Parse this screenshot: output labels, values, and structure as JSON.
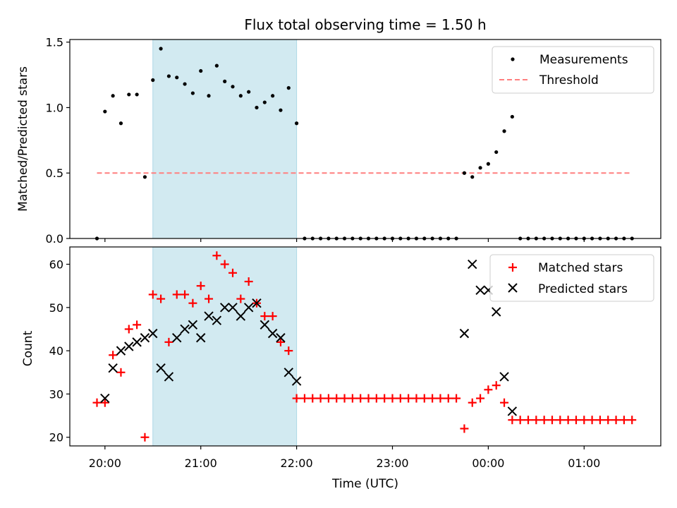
{
  "colors": {
    "shade": "#add8e6",
    "threshold": "#ff7f7f",
    "matched": "#ff0000",
    "predicted": "#000000",
    "measurement": "#000000"
  },
  "chart_data": [
    {
      "type": "scatter",
      "title": "Flux total observing time = 1.50 h",
      "ylabel": "Matched/Predicted stars",
      "xlim": [
        "19:38",
        "01:48"
      ],
      "ylim": [
        0,
        1.52
      ],
      "yticks": [
        0.0,
        0.5,
        1.0,
        1.5
      ],
      "ytick_labels": [
        "0.0",
        "0.5",
        "1.0",
        "1.5"
      ],
      "shaded_span": [
        "20:30",
        "22:00"
      ],
      "legend": {
        "position": "top-right",
        "entries": [
          "Measurements",
          "Threshold"
        ]
      },
      "threshold": {
        "name": "Threshold",
        "y": 0.5,
        "x_start": "19:55",
        "x_end": "01:30"
      },
      "series": [
        {
          "name": "Measurements",
          "x": [
            "19:55",
            "20:00",
            "20:05",
            "20:10",
            "20:15",
            "20:20",
            "20:25",
            "20:30",
            "20:35",
            "20:40",
            "20:45",
            "20:50",
            "20:55",
            "21:00",
            "21:05",
            "21:10",
            "21:15",
            "21:20",
            "21:25",
            "21:30",
            "21:35",
            "21:40",
            "21:45",
            "21:50",
            "21:55",
            "22:00",
            "22:05",
            "22:10",
            "22:15",
            "22:20",
            "22:25",
            "22:30",
            "22:35",
            "22:40",
            "22:45",
            "22:50",
            "22:55",
            "23:00",
            "23:05",
            "23:10",
            "23:15",
            "23:20",
            "23:25",
            "23:30",
            "23:35",
            "23:40",
            "23:45",
            "23:50",
            "23:55",
            "00:00",
            "00:05",
            "00:10",
            "00:15",
            "00:20",
            "00:25",
            "00:30",
            "00:35",
            "00:40",
            "00:45",
            "00:50",
            "00:55",
            "01:00",
            "01:05",
            "01:10",
            "01:15",
            "01:20",
            "01:25",
            "01:30"
          ],
          "y": [
            0,
            0.97,
            1.09,
            0.88,
            1.1,
            1.1,
            0.47,
            1.21,
            1.45,
            1.24,
            1.23,
            1.18,
            1.11,
            1.28,
            1.09,
            1.32,
            1.2,
            1.16,
            1.09,
            1.12,
            1.0,
            1.04,
            1.09,
            0.98,
            1.15,
            0.88,
            0,
            0,
            0,
            0,
            0,
            0,
            0,
            0,
            0,
            0,
            0,
            0,
            0,
            0,
            0,
            0,
            0,
            0,
            0,
            0,
            0.5,
            0.47,
            0.54,
            0.57,
            0.66,
            0.82,
            0.93,
            0,
            0,
            0,
            0,
            0,
            0,
            0,
            0,
            0,
            0,
            0,
            0,
            0,
            0,
            0
          ]
        }
      ]
    },
    {
      "type": "scatter",
      "xlabel": "Time (UTC)",
      "ylabel": "Count",
      "xlim": [
        "19:38",
        "01:48"
      ],
      "ylim": [
        18,
        64
      ],
      "yticks": [
        20,
        30,
        40,
        50,
        60
      ],
      "ytick_labels": [
        "20",
        "30",
        "40",
        "50",
        "60"
      ],
      "xticks": [
        "20:00",
        "21:00",
        "22:00",
        "23:00",
        "00:00",
        "01:00"
      ],
      "shaded_span": [
        "20:30",
        "22:00"
      ],
      "legend": {
        "position": "top-right",
        "entries": [
          "Matched stars",
          "Predicted stars"
        ]
      },
      "series": [
        {
          "name": "Matched stars",
          "marker": "+",
          "x": [
            "19:55",
            "20:00",
            "20:05",
            "20:10",
            "20:15",
            "20:20",
            "20:25",
            "20:30",
            "20:35",
            "20:40",
            "20:45",
            "20:50",
            "20:55",
            "21:00",
            "21:05",
            "21:10",
            "21:15",
            "21:20",
            "21:25",
            "21:30",
            "21:35",
            "21:40",
            "21:45",
            "21:50",
            "21:55",
            "22:00",
            "22:05",
            "22:10",
            "22:15",
            "22:20",
            "22:25",
            "22:30",
            "22:35",
            "22:40",
            "22:45",
            "22:50",
            "22:55",
            "23:00",
            "23:05",
            "23:10",
            "23:15",
            "23:20",
            "23:25",
            "23:30",
            "23:35",
            "23:40",
            "23:45",
            "23:50",
            "23:55",
            "00:00",
            "00:05",
            "00:10",
            "00:15",
            "00:20",
            "00:25",
            "00:30",
            "00:35",
            "00:40",
            "00:45",
            "00:50",
            "00:55",
            "01:00",
            "01:05",
            "01:10",
            "01:15",
            "01:20",
            "01:25",
            "01:30"
          ],
          "y": [
            28,
            28,
            39,
            35,
            45,
            46,
            20,
            53,
            52,
            42,
            53,
            53,
            51,
            55,
            52,
            62,
            60,
            58,
            52,
            56,
            51,
            48,
            48,
            42,
            40,
            29,
            29,
            29,
            29,
            29,
            29,
            29,
            29,
            29,
            29,
            29,
            29,
            29,
            29,
            29,
            29,
            29,
            29,
            29,
            29,
            29,
            22,
            28,
            29,
            31,
            32,
            28,
            24,
            24,
            24,
            24,
            24,
            24,
            24,
            24,
            24,
            24,
            24,
            24,
            24,
            24,
            24,
            24
          ]
        },
        {
          "name": "Predicted stars",
          "marker": "x",
          "x": [
            "20:00",
            "20:05",
            "20:10",
            "20:15",
            "20:20",
            "20:25",
            "20:30",
            "20:35",
            "20:40",
            "20:45",
            "20:50",
            "20:55",
            "21:00",
            "21:05",
            "21:10",
            "21:15",
            "21:20",
            "21:25",
            "21:30",
            "21:35",
            "21:40",
            "21:45",
            "21:50",
            "21:55",
            "22:00",
            "23:45",
            "23:50",
            "23:55",
            "00:00",
            "00:05",
            "00:10",
            "00:15"
          ],
          "y": [
            29,
            36,
            40,
            41,
            42,
            43,
            44,
            36,
            34,
            43,
            45,
            46,
            43,
            48,
            47,
            50,
            50,
            48,
            50,
            51,
            46,
            44,
            43,
            35,
            33,
            44,
            60,
            54,
            54,
            49,
            34,
            26
          ]
        }
      ]
    }
  ]
}
